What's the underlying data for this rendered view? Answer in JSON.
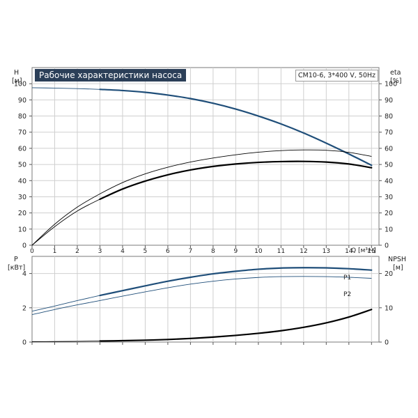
{
  "header": {
    "title": "Рабочие характеристики насоса",
    "model": "CM10-6, 3*400 V, 50Hz"
  },
  "chart_data": [
    {
      "type": "line",
      "panel": "head-efficiency",
      "title": "Рабочие характеристики насоса",
      "xlabel": "Q [м³/ч]",
      "xlim": [
        0,
        15.33
      ],
      "xticks": [
        0,
        1,
        2,
        3,
        4,
        5,
        6,
        7,
        8,
        9,
        10,
        11,
        12,
        13,
        14,
        15
      ],
      "xtick_labels": [
        "0",
        "1",
        "2",
        "3",
        "4",
        "5",
        "6",
        "7",
        "8",
        "9",
        "10",
        "11",
        "12",
        "13",
        "14",
        "15"
      ],
      "left_axis": {
        "label": "H",
        "unit": "[м]",
        "ylim": [
          0,
          110
        ],
        "ticks": [
          0,
          10,
          20,
          30,
          40,
          50,
          60,
          70,
          80,
          90,
          100
        ]
      },
      "right_axis": {
        "label": "eta",
        "unit": "[%]",
        "ylim": [
          0,
          110
        ],
        "ticks": [
          0,
          10,
          20,
          30,
          40,
          50,
          60,
          70,
          80,
          90,
          100
        ]
      },
      "grid": true,
      "series": [
        {
          "axis": "left",
          "color": "#1f4e79",
          "thick_from": 3,
          "x": [
            0,
            1,
            2,
            3,
            4,
            5,
            6,
            7,
            8,
            9,
            10,
            11,
            12,
            13,
            14,
            15
          ],
          "y": [
            97.5,
            97.3,
            97.0,
            96.5,
            95.8,
            94.7,
            93.0,
            90.8,
            87.9,
            84.3,
            80.0,
            75.1,
            69.5,
            63.2,
            56.5,
            49.5
          ]
        },
        {
          "axis": "right",
          "color": "#000000",
          "thick_from": 15.5,
          "x": [
            0,
            1,
            2,
            3,
            4,
            5,
            6,
            7,
            8,
            9,
            10,
            11,
            12,
            13,
            14,
            15
          ],
          "y": [
            0,
            13.0,
            23.6,
            31.8,
            38.8,
            44.2,
            48.3,
            51.5,
            54.0,
            56.0,
            57.6,
            58.6,
            59.0,
            58.8,
            57.5,
            55.0
          ]
        },
        {
          "axis": "right",
          "color": "#000000",
          "thick_from": 3,
          "x": [
            0,
            1,
            2,
            3,
            4,
            5,
            6,
            7,
            8,
            9,
            10,
            11,
            12,
            13,
            14,
            15
          ],
          "y": [
            0,
            11.5,
            21.2,
            28.5,
            34.8,
            39.7,
            43.6,
            46.6,
            48.8,
            50.3,
            51.3,
            51.8,
            51.9,
            51.5,
            50.3,
            48.0
          ]
        }
      ]
    },
    {
      "type": "line",
      "panel": "power-npsh",
      "xlim": [
        0,
        15.33
      ],
      "left_axis": {
        "label": "P",
        "unit": "[кВт]",
        "ylim": [
          0,
          5
        ],
        "ticks": [
          0,
          2,
          4
        ],
        "tick_labels": [
          "0",
          "2",
          "4"
        ]
      },
      "right_axis": {
        "label": "NPSH",
        "unit": "[м]",
        "ylim": [
          0,
          25
        ],
        "ticks": [
          0,
          10,
          20
        ],
        "tick_labels": [
          "0",
          "10",
          "20"
        ]
      },
      "grid": true,
      "series": [
        {
          "name": "P1",
          "axis": "left",
          "color": "#1f4e79",
          "thick_from": 3,
          "x": [
            0,
            1,
            2,
            3,
            4,
            5,
            6,
            7,
            8,
            9,
            10,
            11,
            12,
            13,
            14,
            15
          ],
          "y": [
            1.8,
            2.1,
            2.42,
            2.72,
            3.0,
            3.28,
            3.55,
            3.78,
            3.98,
            4.13,
            4.25,
            4.32,
            4.34,
            4.33,
            4.28,
            4.2
          ]
        },
        {
          "name": "P2",
          "axis": "left",
          "color": "#1f4e79",
          "thick_from": 15.5,
          "x": [
            0,
            1,
            2,
            3,
            4,
            5,
            6,
            7,
            8,
            9,
            10,
            11,
            12,
            13,
            14,
            15
          ],
          "y": [
            1.6,
            1.9,
            2.17,
            2.42,
            2.68,
            2.93,
            3.17,
            3.38,
            3.55,
            3.68,
            3.77,
            3.82,
            3.83,
            3.82,
            3.78,
            3.72
          ]
        },
        {
          "axis": "right",
          "color": "#000000",
          "thick_from": 3,
          "x": [
            0,
            1,
            2,
            3,
            4,
            5,
            6,
            7,
            8,
            9,
            10,
            11,
            12,
            13,
            14,
            15
          ],
          "y": [
            0.1,
            0.15,
            0.22,
            0.3,
            0.4,
            0.55,
            0.75,
            1.05,
            1.45,
            1.95,
            2.55,
            3.3,
            4.3,
            5.6,
            7.3,
            9.5
          ]
        }
      ]
    }
  ]
}
